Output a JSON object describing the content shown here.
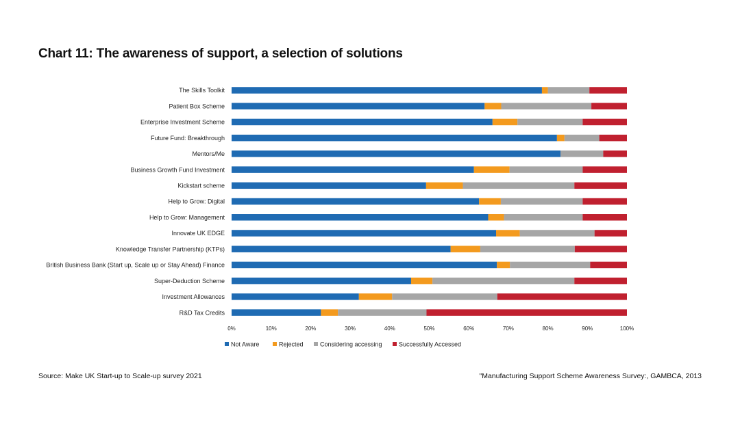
{
  "title": "Chart 11: The awareness of support, a selection of solutions",
  "source_left": "Source: Make UK Start-up to Scale-up survey 2021",
  "source_right": "\"Manufacturing Support Scheme Awareness Survey:, GAMBCA, 2013",
  "colors": {
    "Not Aware": "#1f6bb3",
    "Rejected": "#f39a1e",
    "Considering accessing": "#a6a6a6",
    "Successfully Accessed": "#c0202f"
  },
  "chart_data": {
    "type": "bar",
    "orientation": "horizontal",
    "stacked": "percent",
    "categories": [
      "The Skills Toolkit",
      "Patient Box Scheme",
      "Enterprise Investment Scheme",
      "Future Fund: Breakthrough",
      "Mentors/Me",
      "Business Growth Fund Investment",
      "Kickstart scheme",
      "Help to Grow: Digital",
      "Help to Grow: Management",
      "Innovate UK EDGE",
      "Knowledge Transfer Partnership (KTPs)",
      "British Business Bank (Start up, Scale up or Stay Ahead) Finance",
      "Super-Deduction Scheme",
      "Investment Allowances",
      "R&D Tax Credits"
    ],
    "series": [
      {
        "name": "Not Aware",
        "values": [
          78.5,
          64,
          66,
          82.3,
          83.2,
          61.3,
          49.2,
          62.6,
          64.9,
          66.9,
          55.4,
          67.1,
          45.4,
          32.2,
          22.6
        ]
      },
      {
        "name": "Rejected",
        "values": [
          1.5,
          4.2,
          6.3,
          1.9,
          0,
          9.0,
          9.3,
          5.5,
          4.0,
          6.0,
          7.5,
          3.3,
          5.4,
          8.4,
          4.3
        ]
      },
      {
        "name": "Considering accessing",
        "values": [
          10.5,
          22.8,
          16.5,
          8.8,
          10.8,
          18.5,
          28.2,
          20.7,
          19.9,
          18.9,
          23.9,
          20.3,
          35.9,
          26.6,
          22.4
        ]
      },
      {
        "name": "Successfully Accessed",
        "values": [
          9.5,
          9.0,
          11.2,
          7.0,
          6.0,
          11.2,
          13.3,
          11.2,
          11.2,
          8.2,
          13.2,
          9.3,
          13.3,
          32.8,
          50.7
        ]
      }
    ],
    "x_ticks": [
      "0%",
      "10%",
      "20%",
      "30%",
      "40%",
      "50%",
      "60%",
      "70%",
      "80%",
      "90%",
      "100%"
    ],
    "xlim": [
      0,
      100
    ],
    "legend_position": "bottom-left",
    "grid": false
  }
}
